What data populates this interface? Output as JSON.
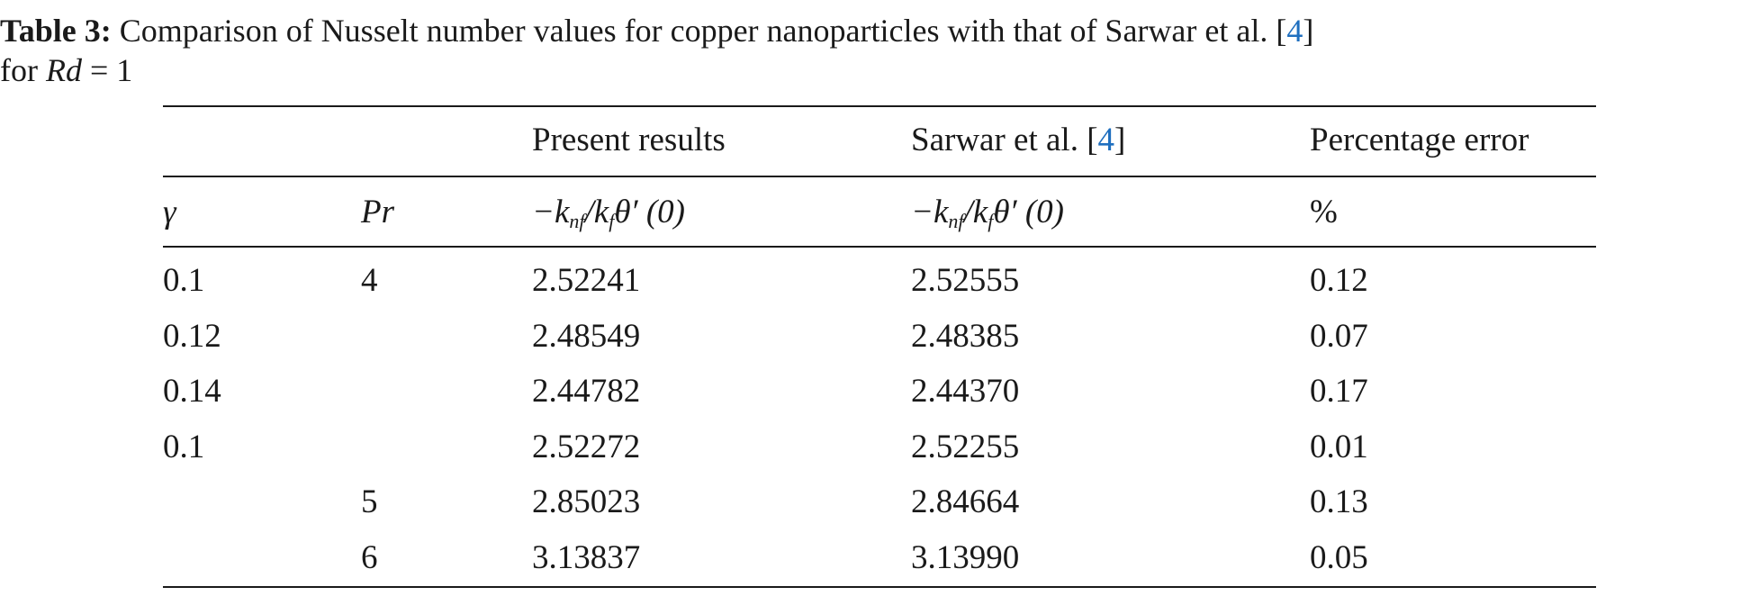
{
  "caption": {
    "label": "Table 3:",
    "text": "Comparison of Nusselt number values for copper nanoparticles with that of Sarwar et al. [",
    "ref": "4",
    "close": "]",
    "line2": "for",
    "math_var": "Rd",
    "math_rest": "= 1"
  },
  "header": {
    "groups": [
      null,
      null,
      [
        "Present results"
      ],
      [
        "Sarwar et al. [",
        "4",
        "]"
      ],
      [
        "Percentage error"
      ]
    ],
    "units": [
      [
        "γ"
      ],
      [
        "Pr"
      ],
      [
        "−k",
        "nf",
        "/k",
        "f",
        "θ′ (0)"
      ],
      [
        "−k",
        "nf",
        "/k",
        "f",
        "θ′ (0)"
      ],
      [
        "%"
      ]
    ]
  },
  "table": {
    "rows": [
      [
        "0.1",
        "4",
        "2.52241",
        "2.52555",
        "0.12"
      ],
      [
        "0.12",
        null,
        "2.48549",
        "2.48385",
        "0.07"
      ],
      [
        "0.14",
        null,
        "2.44782",
        "2.44370",
        "0.17"
      ],
      [
        "0.1",
        null,
        "2.52272",
        "2.52255",
        "0.01"
      ],
      [
        null,
        "5",
        "2.85023",
        "2.84664",
        "0.13"
      ],
      [
        null,
        "6",
        "3.13837",
        "3.13990",
        "0.05"
      ]
    ]
  }
}
